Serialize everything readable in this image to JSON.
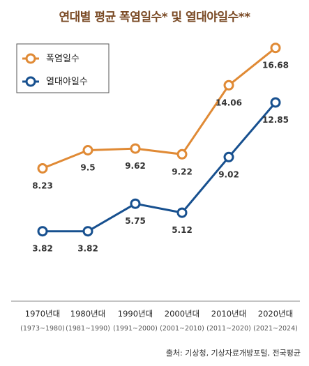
{
  "title": "연대별 평균 폭염일수* 및 열대야일수**",
  "source": "출처: 기상청, 기상자료개방포털, 전국평균",
  "colors": {
    "heatwave": "#e08a35",
    "tropical": "#17508f",
    "title": "#7a4a25",
    "label": "#333333",
    "axis": "#888888"
  },
  "chart_data": {
    "type": "line",
    "categories": [
      "1970년대",
      "1980년대",
      "1990년대",
      "2000년대",
      "2010년대",
      "2020년대"
    ],
    "sub_categories": [
      "(1973~1980)",
      "(1981~1990)",
      "(1991~2000)",
      "(2001~2010)",
      "(2011~2020)",
      "(2021~2024)"
    ],
    "series": [
      {
        "name": "폭염일수",
        "values": [
          8.23,
          9.5,
          9.62,
          9.22,
          14.06,
          16.68
        ],
        "labels": [
          "8.23",
          "9.5",
          "9.62",
          "9.22",
          "14.06",
          "16.68"
        ]
      },
      {
        "name": "열대야일수",
        "values": [
          3.82,
          3.82,
          5.75,
          5.12,
          9.02,
          12.85
        ],
        "labels": [
          "3.82",
          "3.82",
          "5.75",
          "5.12",
          "9.02",
          "12.85"
        ]
      }
    ],
    "legend": "top-left",
    "grid": false
  }
}
